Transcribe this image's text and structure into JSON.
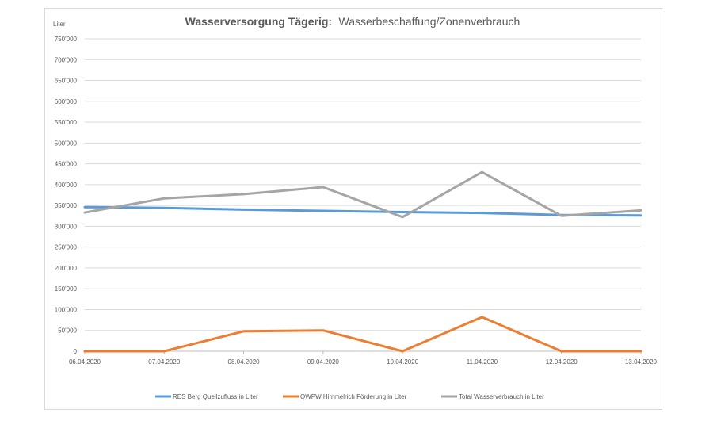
{
  "chart_data": {
    "type": "line",
    "title_bold": "Wasserversorgung Tägerig:",
    "title_rest": "Wasserbeschaffung/Zonenverbrauch",
    "y_unit_label": "Liter",
    "xlabel": "",
    "ylabel": "",
    "ylim": [
      0,
      750000
    ],
    "y_ticks": [
      0,
      50000,
      100000,
      150000,
      200000,
      250000,
      300000,
      350000,
      400000,
      450000,
      500000,
      550000,
      600000,
      650000,
      700000,
      750000
    ],
    "y_tick_labels": [
      "0",
      "50'000",
      "100'000",
      "150'000",
      "200'000",
      "250'000",
      "300'000",
      "350'000",
      "400'000",
      "450'000",
      "500'000",
      "550'000",
      "600'000",
      "650'000",
      "700'000",
      "750'000"
    ],
    "categories": [
      "06.04.2020",
      "07.04.2020",
      "08.04.2020",
      "09.04.2020",
      "10.04.2020",
      "11.04.2020",
      "12.04.2020",
      "13.04.2020"
    ],
    "grid": true,
    "legend_position": "bottom",
    "series": [
      {
        "name": "RES Berg Quellzufluss in Liter",
        "color": "#5b9bd5",
        "values": [
          346000,
          344000,
          340000,
          337000,
          334000,
          332000,
          327000,
          326000
        ]
      },
      {
        "name": "QWPW Himmelrich Förderung in Liter",
        "color": "#ed7d31",
        "values": [
          0,
          0,
          48000,
          50000,
          0,
          82000,
          0,
          0
        ]
      },
      {
        "name": "Total Wasserverbrauch in Liter",
        "color": "#a5a5a5",
        "values": [
          333000,
          367000,
          377000,
          394000,
          322000,
          430000,
          325000,
          338000
        ]
      }
    ]
  }
}
